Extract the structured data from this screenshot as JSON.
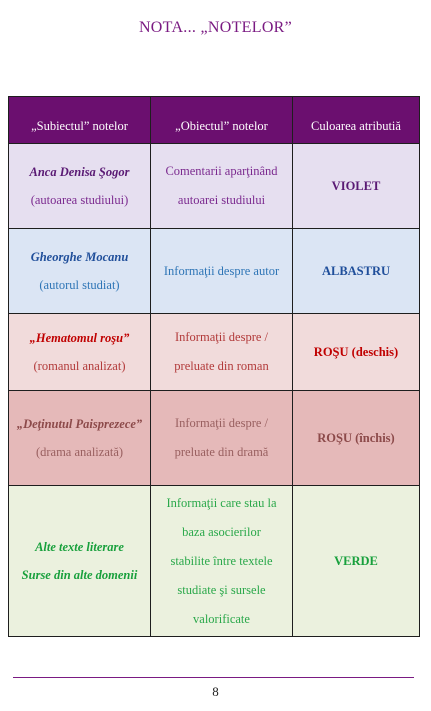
{
  "page": {
    "title": "NOTA... „NOTELOR”",
    "page_number": "8"
  },
  "table": {
    "headers": [
      "„Subiectul” notelor",
      "„Obiectul” notelor",
      "Culoarea atributiă"
    ],
    "rows": [
      {
        "subject_name": "Anca Denisa Şogor",
        "subject_role": "(autoarea studiului)",
        "object_lines": [
          "Comentarii aparţinând",
          "autoarei studiului"
        ],
        "color": "VIOLET"
      },
      {
        "subject_name": "Gheorghe Mocanu",
        "subject_role": "(autorul studiat)",
        "object_lines": [
          "Informaţii despre autor"
        ],
        "color": "ALBASTRU"
      },
      {
        "subject_name": "„Hematomul roşu”",
        "subject_role": "(romanul analizat)",
        "object_lines": [
          "Informaţii despre /",
          "preluate din roman"
        ],
        "color": "ROŞU (deschis)"
      },
      {
        "subject_name": "„Deţinutul Paisprezece”",
        "subject_role": "(drama analizată)",
        "object_lines": [
          "Informaţii despre /",
          "preluate din dramă"
        ],
        "color": "ROŞU (închis)"
      },
      {
        "subject_lines": [
          "Alte texte literare",
          "Surse din alte domenii"
        ],
        "object_lines": [
          "Informaţii care stau la",
          "baza asocierilor",
          "stabilite între textele",
          "studiate şi sursele",
          "valorificate"
        ],
        "color": "VERDE"
      }
    ]
  },
  "colors": {
    "title": "#7a1a82",
    "header_bg": "#6b0f6f",
    "violet_row": "#e6dff0",
    "blue_row": "#dbe5f4",
    "light_red_row": "#f1dbdb",
    "dark_red_row": "#e5b9b9",
    "green_row": "#ebf1de"
  }
}
